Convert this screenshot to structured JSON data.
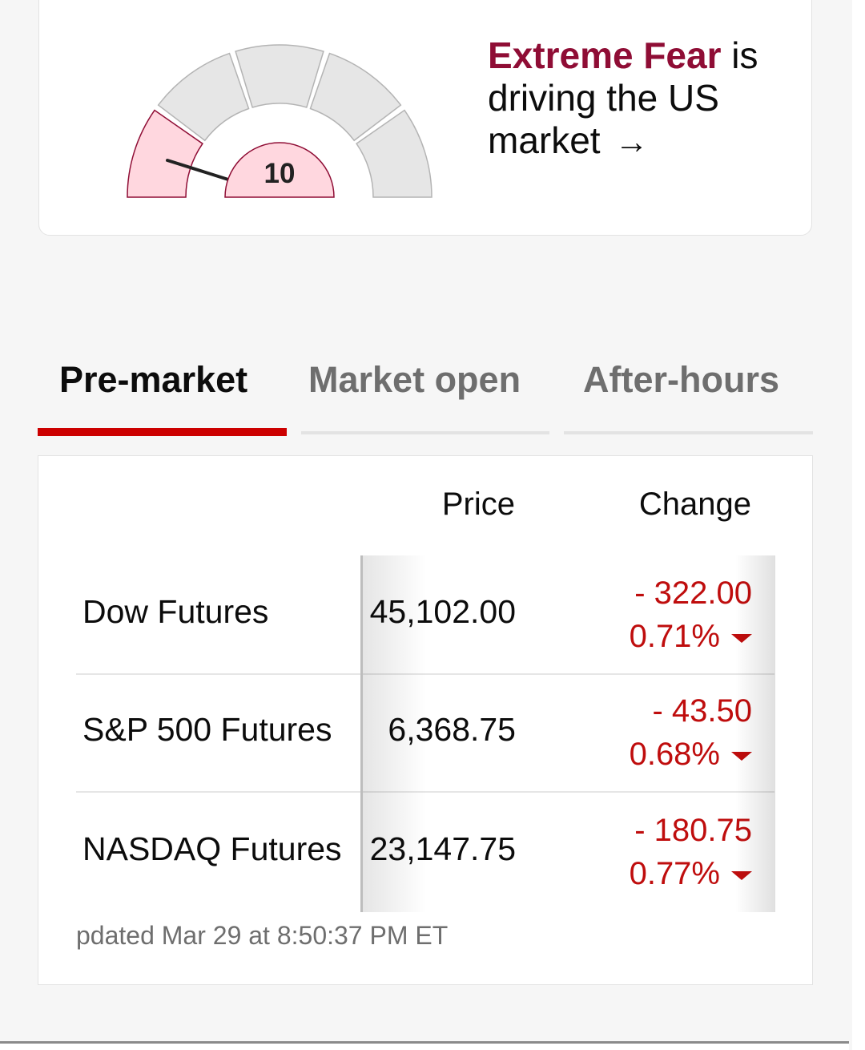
{
  "fear_greed": {
    "score": "10",
    "headline_strong": "Extreme Fear",
    "headline_rest": " is driving the US market",
    "arrow": "→",
    "colors": {
      "fear_fill": "#ffd7df",
      "fear_stroke": "#8f0d35",
      "neutral_fill": "#e6e6e6",
      "neutral_stroke": "#b4b4b4"
    }
  },
  "tabs": [
    {
      "label": "Pre-market",
      "active": true
    },
    {
      "label": "Market open",
      "active": false
    },
    {
      "label": "After-hours",
      "active": false
    }
  ],
  "markets": {
    "columns": {
      "price": "Price",
      "change": "Change"
    },
    "rows": [
      {
        "name": "Dow Futures",
        "price": "45,102.00",
        "change": "- 322.00",
        "percent": "0.71%",
        "direction": "down"
      },
      {
        "name": "S&P 500 Futures",
        "price": "6,368.75",
        "change": "- 43.50",
        "percent": "0.68%",
        "direction": "down"
      },
      {
        "name": "NASDAQ Futures",
        "price": "23,147.75",
        "change": "- 180.75",
        "percent": "0.77%",
        "direction": "down"
      }
    ],
    "updated": "pdated Mar 29 at 8:50:37 PM ET",
    "colors": {
      "negative": "#bf0d0d",
      "tab_active": "#cc0000"
    }
  }
}
